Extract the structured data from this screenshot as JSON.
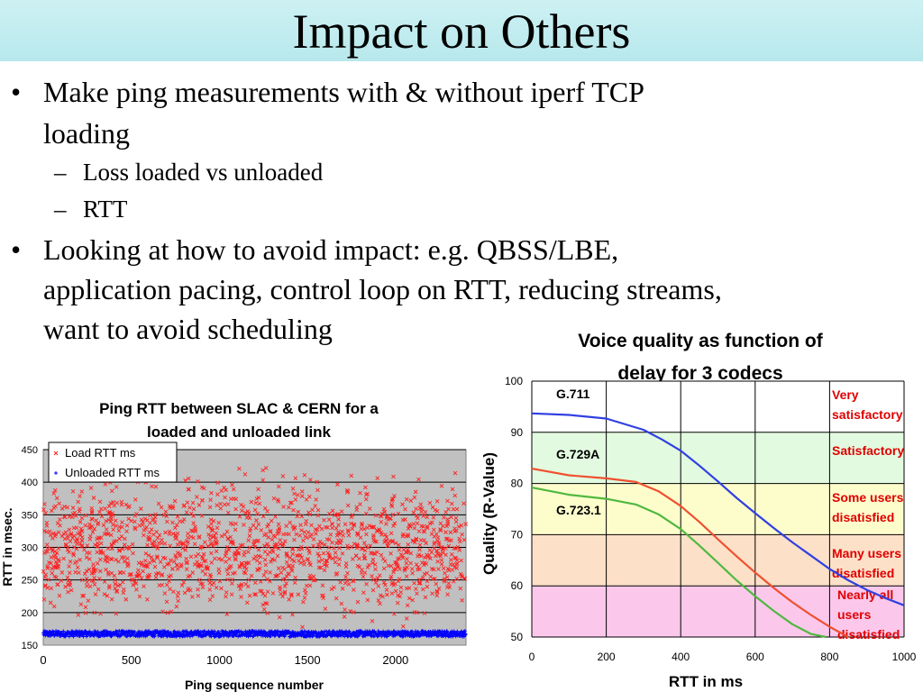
{
  "slide": {
    "title": "Impact on Others",
    "bullets": [
      {
        "marker": "•",
        "lines": [
          "Make ping measurements with & without iperf TCP",
          "loading"
        ]
      },
      {
        "marker": "•",
        "lines": [
          "Looking at how to avoid impact: e.g. QBSS/LBE,",
          "application pacing, control loop on RTT, reducing streams,",
          "want to avoid scheduling"
        ]
      }
    ],
    "sub_bullets": [
      {
        "marker": "–",
        "text": "Loss loaded vs unloaded"
      },
      {
        "marker": "–",
        "text": "RTT"
      }
    ]
  },
  "chart_data": [
    {
      "type": "scatter",
      "title": "Ping RTT between SLAC & CERN for a loaded and unloaded link",
      "title_lines": [
        "Ping RTT between SLAC & CERN for a",
        "loaded and unloaded link"
      ],
      "xlabel": "Ping sequence number",
      "ylabel": "RTT in msec.",
      "xlim": [
        0,
        2400
      ],
      "ylim": [
        150,
        450
      ],
      "x_ticks": [
        0,
        500,
        1000,
        1500,
        2000
      ],
      "y_ticks": [
        150,
        200,
        250,
        300,
        350,
        400,
        450
      ],
      "grid": true,
      "legend_position": "top-left",
      "background": "#c0c0c0",
      "series": [
        {
          "name": "Load RTT ms",
          "marker": "×",
          "color": "#ff2020",
          "count": 1500,
          "value_range": [
            160,
            440
          ],
          "mean": 270
        },
        {
          "name": "Unloaded RTT ms",
          "marker": "+",
          "color": "#0000ff",
          "count": 2400,
          "value_range": [
            163,
            172
          ],
          "mean": 167
        }
      ]
    },
    {
      "type": "line",
      "title": "Voice quality as function of delay for 3 codecs",
      "title_lines": [
        "Voice quality as function of",
        "delay for 3 codecs"
      ],
      "xlabel": "RTT in ms",
      "ylabel": "Quality (R-Value)",
      "xlim": [
        0,
        1000
      ],
      "ylim": [
        50,
        100
      ],
      "x_ticks": [
        0,
        200,
        400,
        600,
        800,
        1000
      ],
      "y_ticks": [
        50,
        60,
        70,
        80,
        90,
        100
      ],
      "grid": true,
      "bands": [
        {
          "from": 90,
          "to": 100,
          "label": "Very satisfactory",
          "label_lines": [
            "Very",
            "satisfactory"
          ],
          "color": "#ffffff"
        },
        {
          "from": 80,
          "to": 90,
          "label": "Satisfactory",
          "label_lines": [
            "Satisfactory"
          ],
          "color": "#e2fbe0"
        },
        {
          "from": 70,
          "to": 80,
          "label": "Some users disatisfied",
          "label_lines": [
            "Some users",
            "disatisfied"
          ],
          "color": "#fdfdcc"
        },
        {
          "from": 60,
          "to": 70,
          "label": "Many users disatisfied",
          "label_lines": [
            "Many users",
            "disatisfied"
          ],
          "color": "#fde0c8"
        },
        {
          "from": 50,
          "to": 60,
          "label": "Nearly all users disatisfied",
          "label_lines": [
            "Nearly all",
            "users",
            "disatisfied"
          ],
          "color": "#fbc8ec"
        }
      ],
      "series": [
        {
          "name": "G.711",
          "color": "#3040e0",
          "x": [
            0,
            100,
            200,
            300,
            350,
            400,
            450,
            500,
            550,
            600,
            650,
            700,
            750,
            800,
            850,
            900,
            950,
            1000
          ],
          "y": [
            93.7,
            93.4,
            92.7,
            90.5,
            88.6,
            86.4,
            83.5,
            80.4,
            77.2,
            74.2,
            71.3,
            68.5,
            65.9,
            63.3,
            61.1,
            59.2,
            57.6,
            56.2
          ]
        },
        {
          "name": "G.729A",
          "color": "#f05030",
          "x": [
            0,
            100,
            200,
            280,
            340,
            400,
            450,
            500,
            550,
            600,
            650,
            700,
            750,
            800,
            850
          ],
          "y": [
            82.9,
            81.6,
            81.0,
            80.3,
            78.5,
            75.6,
            72.5,
            69.1,
            65.8,
            62.6,
            59.6,
            56.8,
            54.3,
            52.0,
            50.0
          ]
        },
        {
          "name": "G.723.1",
          "color": "#50b840",
          "x": [
            0,
            100,
            200,
            280,
            340,
            400,
            450,
            500,
            550,
            600,
            650,
            700,
            750,
            790
          ],
          "y": [
            79.2,
            77.8,
            77.0,
            75.9,
            74.0,
            71.1,
            67.9,
            64.5,
            61.1,
            58.0,
            55.1,
            52.5,
            50.6,
            50.0
          ]
        }
      ]
    }
  ]
}
